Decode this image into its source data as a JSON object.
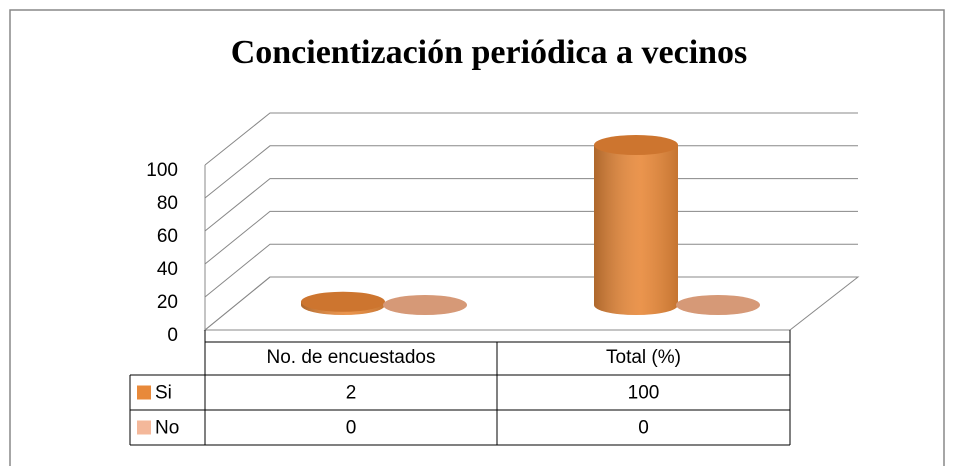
{
  "chart_data": {
    "type": "bar3d",
    "title": "Concientización periódica a vecinos",
    "categories": [
      "No. de encuestados",
      "Total (%)"
    ],
    "series": [
      {
        "name": "Si",
        "color": "#e8893a",
        "values": [
          2,
          100
        ]
      },
      {
        "name": "No",
        "color": "#f4b89a",
        "values": [
          0,
          0
        ]
      }
    ],
    "ylim": [
      0,
      100
    ],
    "yticks": [
      0,
      20,
      40,
      60,
      80,
      100
    ],
    "grid": true,
    "data_table": true
  }
}
